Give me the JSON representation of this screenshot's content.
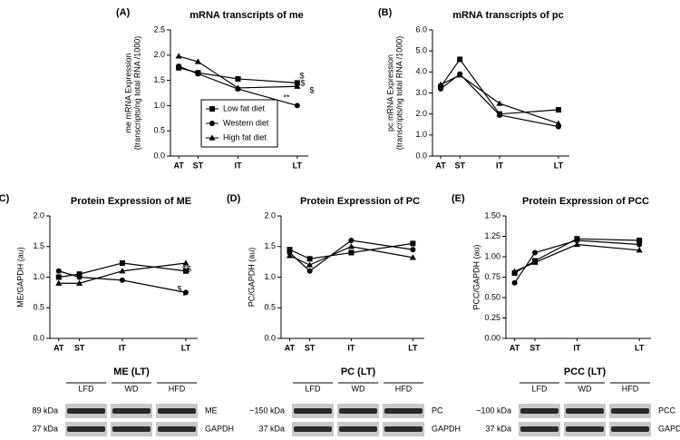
{
  "chart_data": [
    {
      "type": "line",
      "panel": "(A)",
      "title": "mRNA transcripts of me",
      "ylabel": [
        "me  mRNA Expression",
        "(transcripts/ng total RNA /1000)"
      ],
      "categories": [
        "AT",
        "ST",
        "IT",
        "LT"
      ],
      "series": [
        {
          "name": "Low fat diet",
          "color": "#000000",
          "marker": "square",
          "values": [
            1.75,
            1.65,
            1.53,
            1.45
          ]
        },
        {
          "name": "Western diet",
          "color": "#000000",
          "marker": "circle",
          "values": [
            1.78,
            1.63,
            1.33,
            1.0
          ]
        },
        {
          "name": "High fat diet",
          "color": "#000000",
          "marker": "triangle",
          "values": [
            1.98,
            1.87,
            1.35,
            1.38
          ]
        }
      ],
      "ylim": [
        0,
        2.5
      ],
      "yticks": [
        {
          "value": 0,
          "label": "0.0"
        },
        {
          "value": 0.5,
          "label": "0.5"
        },
        {
          "value": 1,
          "label": "1.0"
        },
        {
          "value": 1.5,
          "label": "1.5"
        },
        {
          "value": 2,
          "label": "2.0"
        },
        {
          "value": 2.5,
          "label": "2.5"
        }
      ],
      "legend": "lower-left",
      "annotations": [
        "$",
        "$",
        "$",
        "**"
      ]
    },
    {
      "type": "line",
      "panel": "(B)",
      "title": "mRNA transcripts of pc",
      "ylabel": [
        "pc  mRNA Expression",
        "(transcripts/ng total RNA /1000)"
      ],
      "categories": [
        "AT",
        "ST",
        "IT",
        "LT"
      ],
      "series": [
        {
          "name": "Low fat diet",
          "color": "#000000",
          "marker": "square",
          "values": [
            3.3,
            4.6,
            2.0,
            2.2
          ]
        },
        {
          "name": "Western diet",
          "color": "#000000",
          "marker": "circle",
          "values": [
            3.2,
            3.9,
            1.95,
            1.4
          ]
        },
        {
          "name": "High fat diet",
          "color": "#000000",
          "marker": "triangle",
          "values": [
            3.4,
            3.85,
            2.5,
            1.55
          ]
        }
      ],
      "ylim": [
        0,
        6
      ],
      "yticks": [
        {
          "value": 0,
          "label": "0.0"
        },
        {
          "value": 1,
          "label": "1.0"
        },
        {
          "value": 2,
          "label": "2.0"
        },
        {
          "value": 3,
          "label": "3.0"
        },
        {
          "value": 4,
          "label": "4.0"
        },
        {
          "value": 5,
          "label": "5.0"
        },
        {
          "value": 6,
          "label": "6.0"
        }
      ]
    },
    {
      "type": "line",
      "panel": "(C)",
      "title": "Protein Expression of ME",
      "ylabel": [
        "ME/GAPDH (au)"
      ],
      "categories": [
        "AT",
        "ST",
        "IT",
        "LT"
      ],
      "series": [
        {
          "name": "Low fat diet",
          "color": "#000000",
          "marker": "square",
          "values": [
            1.0,
            1.05,
            1.23,
            1.1
          ]
        },
        {
          "name": "Western diet",
          "color": "#000000",
          "marker": "circle",
          "values": [
            1.1,
            1.0,
            0.95,
            0.75
          ]
        },
        {
          "name": "High fat diet",
          "color": "#000000",
          "marker": "triangle",
          "values": [
            0.9,
            0.9,
            1.1,
            1.23
          ]
        }
      ],
      "ylim": [
        0,
        2
      ],
      "yticks": [
        {
          "value": 0,
          "label": "0.0"
        },
        {
          "value": 0.5,
          "label": "0.5"
        },
        {
          "value": 1,
          "label": "1.0"
        },
        {
          "value": 1.5,
          "label": "1.5"
        },
        {
          "value": 2,
          "label": "2.0"
        }
      ],
      "annotations": [
        "$$",
        "$",
        "*"
      ]
    },
    {
      "type": "line",
      "panel": "(D)",
      "title": "Protein Expression of PC",
      "ylabel": [
        "PC/GAPDH (au)"
      ],
      "categories": [
        "AT",
        "ST",
        "IT",
        "LT"
      ],
      "series": [
        {
          "name": "Low fat diet",
          "color": "#000000",
          "marker": "square",
          "values": [
            1.45,
            1.3,
            1.4,
            1.55
          ]
        },
        {
          "name": "Western diet",
          "color": "#000000",
          "marker": "circle",
          "values": [
            1.4,
            1.1,
            1.6,
            1.45
          ]
        },
        {
          "name": "High fat diet",
          "color": "#000000",
          "marker": "triangle",
          "values": [
            1.35,
            1.2,
            1.5,
            1.32
          ]
        }
      ],
      "ylim": [
        0,
        2
      ],
      "yticks": [
        {
          "value": 0,
          "label": "0.0"
        },
        {
          "value": 0.5,
          "label": "0.5"
        },
        {
          "value": 1,
          "label": "1.0"
        },
        {
          "value": 1.5,
          "label": "1.5"
        },
        {
          "value": 2,
          "label": "2.0"
        }
      ]
    },
    {
      "type": "line",
      "panel": "(E)",
      "title": "Protein Expression of PCC",
      "ylabel": [
        "PCC/GAPDH (au)"
      ],
      "categories": [
        "AT",
        "ST",
        "IT",
        "LT"
      ],
      "series": [
        {
          "name": "Low fat diet",
          "color": "#000000",
          "marker": "square",
          "values": [
            0.8,
            0.95,
            1.22,
            1.2
          ]
        },
        {
          "name": "Western diet",
          "color": "#000000",
          "marker": "circle",
          "values": [
            0.68,
            1.05,
            1.2,
            1.15
          ]
        },
        {
          "name": "High fat diet",
          "color": "#000000",
          "marker": "triangle",
          "values": [
            0.82,
            0.93,
            1.15,
            1.08
          ]
        }
      ],
      "ylim": [
        0,
        1.5
      ],
      "yticks": [
        {
          "value": 0,
          "label": "0.00"
        },
        {
          "value": 0.25,
          "label": "0.25"
        },
        {
          "value": 0.5,
          "label": "0.50"
        },
        {
          "value": 0.75,
          "label": "0.75"
        },
        {
          "value": 1,
          "label": "1.00"
        },
        {
          "value": 1.25,
          "label": "1.25"
        },
        {
          "value": 1.5,
          "label": "1.50"
        }
      ]
    }
  ],
  "blots": [
    {
      "title": "ME (LT)",
      "groups": [
        "LFD",
        "WD",
        "HFD"
      ],
      "rows": [
        {
          "size": "89 kDa",
          "protein": "ME"
        },
        {
          "size": "37 kDa",
          "protein": "GAPDH"
        }
      ]
    },
    {
      "title": "PC (LT)",
      "groups": [
        "LFD",
        "WD",
        "HFD"
      ],
      "rows": [
        {
          "size": "~150 kDa",
          "protein": "PC"
        },
        {
          "size": "37 kDa",
          "protein": "GAPDH"
        }
      ]
    },
    {
      "title": "PCC (LT)",
      "groups": [
        "LFD",
        "WD",
        "HFD"
      ],
      "rows": [
        {
          "size": "~100 kDa",
          "protein": "PCC"
        },
        {
          "size": "37 kDa",
          "protein": "GAPDH"
        }
      ]
    }
  ]
}
